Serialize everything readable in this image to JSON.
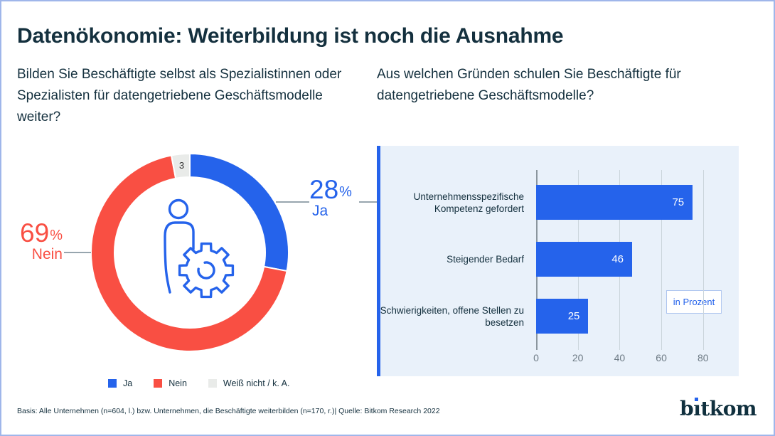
{
  "meta": {
    "title": "Datenökonomie: Weiterbildung ist noch die Ausnahme"
  },
  "colors": {
    "blue": "#2563EB",
    "red": "#F94F43",
    "lightgray": "#E9EBE9",
    "dark": "#14303E",
    "panel_bg": "#E9F1FA",
    "frame_border": "#9FB6EA",
    "callout_line": "#97A5AE",
    "grid": "#CBD5DC",
    "axis": "#8B969E"
  },
  "chart_data": [
    {
      "type": "pie",
      "donut": true,
      "title": "Bilden Sie Beschäftigte selbst als Spezialistinnen oder Spezialisten für datengetriebene Geschäftsmodelle weiter?",
      "unit": "%",
      "slices": [
        {
          "label": "Ja",
          "value": 28,
          "color": "#2563EB"
        },
        {
          "label": "Nein",
          "value": 69,
          "color": "#F94F43"
        },
        {
          "label": "Weiß nicht / k. A.",
          "value": 3,
          "color": "#E9EBE9"
        }
      ],
      "center_icon": "person-gear-icon",
      "legend_position": "bottom"
    },
    {
      "type": "bar",
      "orientation": "horizontal",
      "title": "Aus welchen Gründen schulen Sie Beschäftigte für datengetriebene Geschäftsmodelle?",
      "categories": [
        "Unternehmensspezifische Kompetenz gefordert",
        "Steigender Bedarf",
        "Schwierigkeiten, offene Stellen zu besetzen"
      ],
      "values": [
        75,
        46,
        25
      ],
      "bar_color": "#2563EB",
      "xticks": [
        0,
        20,
        40,
        60,
        80
      ],
      "xlim": [
        0,
        86
      ],
      "unit_label": "in Prozent",
      "grid": true,
      "value_labels": "inside-end"
    }
  ],
  "footer": {
    "basis": "Basis: Alle Unternehmen (n=604, l.)  bzw. Unternehmen, die Beschäftigte weiterbilden (n=170, r.)| Quelle: Bitkom Research 2022",
    "logo_b": "b",
    "logo_i": "ı",
    "logo_rest": "tkom"
  }
}
